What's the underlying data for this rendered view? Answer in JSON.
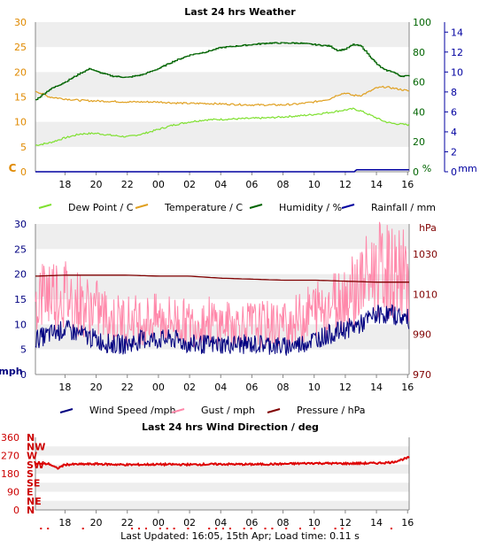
{
  "footer": "Last Updated: 16:05, 15th Apr; Load time: 0.11 s",
  "chart_data": [
    {
      "type": "line",
      "title": "Last 24 hrs Weather",
      "x_ticks": [
        "18",
        "20",
        "22",
        "00",
        "02",
        "04",
        "06",
        "08",
        "10",
        "12",
        "14",
        "16"
      ],
      "x_range_hours": [
        16.1,
        40.1
      ],
      "y_left": {
        "label": "C",
        "ticks": [
          "0",
          "5",
          "10",
          "15",
          "20",
          "25",
          "30"
        ],
        "range": [
          0,
          30
        ],
        "color": "#e08a00"
      },
      "y_right_1": {
        "label": "%",
        "ticks": [
          "0",
          "20",
          "40",
          "60",
          "80",
          "100"
        ],
        "range": [
          0,
          100
        ],
        "color": "#006400"
      },
      "y_right_2": {
        "label": "mm",
        "ticks": [
          "0",
          "2",
          "4",
          "6",
          "8",
          "10",
          "12",
          "14"
        ],
        "range": [
          0,
          15
        ],
        "color": "#0000a0"
      },
      "grid": "horizontal bands",
      "legend_position": "bottom",
      "series": [
        {
          "name": "Dew Point / C",
          "color": "#7fe030",
          "axis": "left",
          "points": [
            [
              16.1,
              5.3
            ],
            [
              17,
              5.8
            ],
            [
              18,
              6.8
            ],
            [
              19,
              7.6
            ],
            [
              20,
              7.7
            ],
            [
              21,
              7.3
            ],
            [
              22,
              7.0
            ],
            [
              23,
              7.6
            ],
            [
              24,
              8.5
            ],
            [
              25,
              9.4
            ],
            [
              26,
              10.0
            ],
            [
              27,
              10.4
            ],
            [
              28,
              10.5
            ],
            [
              29,
              10.6
            ],
            [
              30,
              10.7
            ],
            [
              31,
              10.8
            ],
            [
              32,
              11.0
            ],
            [
              33,
              11.2
            ],
            [
              34,
              11.5
            ],
            [
              35,
              11.9
            ],
            [
              36,
              12.4
            ],
            [
              36.5,
              12.6
            ],
            [
              37,
              12.2
            ],
            [
              37.5,
              11.5
            ],
            [
              38,
              10.8
            ],
            [
              38.5,
              10.1
            ],
            [
              39,
              9.7
            ],
            [
              40.1,
              9.4
            ]
          ]
        },
        {
          "name": "Temperature / C",
          "color": "#e0a020",
          "axis": "left",
          "points": [
            [
              16.1,
              16.2
            ],
            [
              17,
              15.0
            ],
            [
              18,
              14.6
            ],
            [
              19,
              14.3
            ],
            [
              20,
              14.2
            ],
            [
              21,
              14.1
            ],
            [
              22,
              14.0
            ],
            [
              23,
              14.0
            ],
            [
              24,
              14.0
            ],
            [
              25,
              13.8
            ],
            [
              26,
              13.7
            ],
            [
              27,
              13.7
            ],
            [
              28,
              13.6
            ],
            [
              29,
              13.5
            ],
            [
              30,
              13.4
            ],
            [
              31,
              13.4
            ],
            [
              32,
              13.4
            ],
            [
              33,
              13.6
            ],
            [
              34,
              14.0
            ],
            [
              35,
              14.6
            ],
            [
              35.5,
              15.4
            ],
            [
              36,
              15.8
            ],
            [
              36.5,
              15.3
            ],
            [
              37,
              15.3
            ],
            [
              37.5,
              16.0
            ],
            [
              38,
              16.8
            ],
            [
              38.5,
              17.0
            ],
            [
              39,
              16.8
            ],
            [
              40.1,
              16.2
            ]
          ]
        },
        {
          "name": "Humidity / %",
          "color": "#006400",
          "axis": "right_1",
          "points": [
            [
              16.1,
              48
            ],
            [
              17,
              55
            ],
            [
              18,
              60
            ],
            [
              19,
              66
            ],
            [
              19.6,
              69
            ],
            [
              20,
              67
            ],
            [
              21,
              64
            ],
            [
              22,
              63
            ],
            [
              23,
              65
            ],
            [
              24,
              69
            ],
            [
              25,
              74
            ],
            [
              26,
              78
            ],
            [
              27,
              80
            ],
            [
              28,
              83
            ],
            [
              29,
              84
            ],
            [
              30,
              85
            ],
            [
              31,
              86
            ],
            [
              32,
              86
            ],
            [
              33,
              86
            ],
            [
              34,
              85
            ],
            [
              35,
              84
            ],
            [
              35.5,
              81
            ],
            [
              36,
              82
            ],
            [
              36.5,
              85
            ],
            [
              37,
              84
            ],
            [
              37.5,
              78
            ],
            [
              38,
              72
            ],
            [
              38.5,
              68
            ],
            [
              39,
              67
            ],
            [
              39.5,
              64
            ],
            [
              40.1,
              64
            ]
          ]
        },
        {
          "name": "Rainfall / mm",
          "color": "#0000a0",
          "axis": "right_2",
          "points": [
            [
              16.1,
              0
            ],
            [
              36.6,
              0
            ],
            [
              36.7,
              0.2
            ],
            [
              40.1,
              0.2
            ]
          ]
        }
      ]
    },
    {
      "type": "line",
      "x_ticks": [
        "18",
        "20",
        "22",
        "00",
        "02",
        "04",
        "06",
        "08",
        "10",
        "12",
        "14",
        "16"
      ],
      "x_range_hours": [
        16.1,
        40.1
      ],
      "y_left": {
        "label": "mph",
        "ticks": [
          "0",
          "5",
          "10",
          "15",
          "20",
          "25",
          "30"
        ],
        "range": [
          0,
          30
        ],
        "color": "#000080"
      },
      "y_right": {
        "label": "hPa",
        "ticks": [
          "970",
          "990",
          "1010",
          "1030"
        ],
        "range": [
          970,
          1045
        ],
        "color": "#800000"
      },
      "grid": "horizontal bands",
      "legend_position": "bottom",
      "series": [
        {
          "name": "Wind Speed /mph",
          "color": "#000080",
          "axis": "left",
          "points": [
            [
              16.1,
              7
            ],
            [
              17,
              8
            ],
            [
              18,
              9
            ],
            [
              19,
              8
            ],
            [
              20,
              7
            ],
            [
              21,
              6
            ],
            [
              22,
              6
            ],
            [
              23,
              7
            ],
            [
              24,
              7
            ],
            [
              25,
              7
            ],
            [
              26,
              6
            ],
            [
              27,
              6
            ],
            [
              28,
              6
            ],
            [
              29,
              6
            ],
            [
              30,
              6
            ],
            [
              31,
              6
            ],
            [
              32,
              5.5
            ],
            [
              33,
              6
            ],
            [
              34,
              7
            ],
            [
              35,
              8
            ],
            [
              36,
              9
            ],
            [
              37,
              10
            ],
            [
              38,
              12
            ],
            [
              39,
              12
            ],
            [
              40.1,
              11
            ]
          ]
        },
        {
          "name": "Gust / mph",
          "color": "#ff88aa",
          "axis": "left",
          "points": [
            [
              16.1,
              15
            ],
            [
              17,
              17
            ],
            [
              18,
              16
            ],
            [
              19,
              14
            ],
            [
              20,
              13
            ],
            [
              21,
              11
            ],
            [
              22,
              11
            ],
            [
              23,
              11
            ],
            [
              24,
              11
            ],
            [
              25,
              11
            ],
            [
              26,
              10
            ],
            [
              27,
              11
            ],
            [
              28,
              10
            ],
            [
              29,
              10
            ],
            [
              30,
              10
            ],
            [
              31,
              10
            ],
            [
              32,
              10
            ],
            [
              33,
              11
            ],
            [
              34,
              13
            ],
            [
              35,
              14
            ],
            [
              36,
              16
            ],
            [
              37,
              18
            ],
            [
              38,
              21
            ],
            [
              39,
              20
            ],
            [
              40.1,
              20
            ]
          ]
        },
        {
          "name": "Pressure / hPa",
          "color": "#800000",
          "axis": "right",
          "points": [
            [
              16.1,
              1019
            ],
            [
              18,
              1019.5
            ],
            [
              20,
              1019.5
            ],
            [
              22,
              1019.5
            ],
            [
              24,
              1019
            ],
            [
              26,
              1019
            ],
            [
              28,
              1018
            ],
            [
              30,
              1017.5
            ],
            [
              32,
              1017
            ],
            [
              34,
              1017
            ],
            [
              36,
              1016.5
            ],
            [
              38,
              1016
            ],
            [
              40.1,
              1016
            ]
          ]
        }
      ]
    },
    {
      "type": "scatter",
      "title": "Last 24 hrs Wind Direction / deg",
      "x_ticks": [
        "18",
        "20",
        "22",
        "00",
        "02",
        "04",
        "06",
        "08",
        "10",
        "12",
        "14",
        "16"
      ],
      "x_range_hours": [
        16.1,
        40.1
      ],
      "y_left": {
        "ticks": [
          "0",
          "90",
          "180",
          "270",
          "360"
        ],
        "range": [
          0,
          360
        ],
        "color": "#cc0000"
      },
      "y_compass": [
        "N",
        "NE",
        "E",
        "SE",
        "S",
        "SW",
        "W",
        "NW",
        "N"
      ],
      "grid": "horizontal bands",
      "series": [
        {
          "name": "Wind Direction",
          "color": "#dd0000",
          "points": [
            [
              16.1,
              230
            ],
            [
              17,
              228
            ],
            [
              17.5,
              205
            ],
            [
              18,
              225
            ],
            [
              20,
              228
            ],
            [
              22,
              224
            ],
            [
              24,
              226
            ],
            [
              26,
              225
            ],
            [
              28,
              227
            ],
            [
              30,
              226
            ],
            [
              32,
              228
            ],
            [
              34,
              232
            ],
            [
              36,
              230
            ],
            [
              38,
              232
            ],
            [
              39,
              236
            ],
            [
              40.1,
              260
            ]
          ]
        }
      ]
    }
  ]
}
